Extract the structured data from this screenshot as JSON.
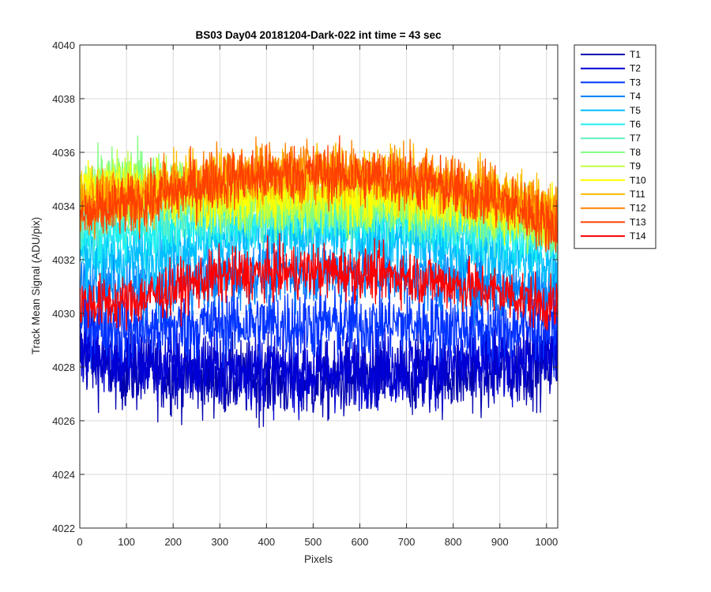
{
  "chart_data": {
    "type": "line",
    "title": "BS03 Day04 20181204-Dark-022 int time = 43 sec",
    "xlabel": "Pixels",
    "ylabel": "Track Mean Signal (ADU/pix)",
    "xlim": [
      0,
      1024
    ],
    "ylim": [
      4022,
      4040
    ],
    "xticks": [
      0,
      100,
      200,
      300,
      400,
      500,
      600,
      700,
      800,
      900,
      1000
    ],
    "yticks": [
      4022,
      4024,
      4026,
      4028,
      4030,
      4032,
      4034,
      4036,
      4038,
      4040
    ],
    "grid": true,
    "legend_position": "outside-top-right",
    "x_points": 1024,
    "series": [
      {
        "name": "T1",
        "color": "#0000AF",
        "profile_x": [
          0,
          100,
          300,
          500,
          700,
          900,
          1024
        ],
        "profile_y": [
          4028.4,
          4027.8,
          4027.6,
          4027.4,
          4027.6,
          4027.8,
          4028.2
        ],
        "spread": 1.3
      },
      {
        "name": "T2",
        "color": "#0000D6",
        "profile_x": [
          0,
          100,
          300,
          500,
          700,
          900,
          1024
        ],
        "profile_y": [
          4028.8,
          4028.2,
          4028.0,
          4027.8,
          4028.0,
          4028.2,
          4028.6
        ],
        "spread": 1.3
      },
      {
        "name": "T3",
        "color": "#0033FF",
        "profile_x": [
          0,
          100,
          300,
          500,
          700,
          900,
          1024
        ],
        "profile_y": [
          4029.8,
          4029.4,
          4029.6,
          4029.6,
          4029.6,
          4029.4,
          4029.6
        ],
        "spread": 1.2
      },
      {
        "name": "T4",
        "color": "#0080FF",
        "profile_x": [
          0,
          100,
          300,
          500,
          700,
          900,
          1024
        ],
        "profile_y": [
          4031.0,
          4030.8,
          4031.4,
          4031.6,
          4031.4,
          4031.0,
          4030.8
        ],
        "spread": 1.1
      },
      {
        "name": "T5",
        "color": "#00BFFF",
        "profile_x": [
          0,
          100,
          300,
          500,
          700,
          900,
          1024
        ],
        "profile_y": [
          4032.2,
          4032.0,
          4032.8,
          4033.0,
          4032.8,
          4032.2,
          4031.8
        ],
        "spread": 1.1
      },
      {
        "name": "T6",
        "color": "#1EEFF0",
        "profile_x": [
          0,
          100,
          300,
          500,
          700,
          900,
          1024
        ],
        "profile_y": [
          4033.0,
          4033.0,
          4033.4,
          4033.6,
          4033.4,
          4033.0,
          4032.6
        ],
        "spread": 1.0
      },
      {
        "name": "T7",
        "color": "#60F0C0",
        "profile_x": [
          0,
          100,
          300,
          500,
          700,
          900,
          1024
        ],
        "profile_y": [
          4033.6,
          4033.8,
          4033.8,
          4033.8,
          4033.8,
          4033.4,
          4033.0
        ],
        "spread": 1.0
      },
      {
        "name": "T8",
        "color": "#7FFF7F",
        "profile_x": [
          0,
          100,
          300,
          500,
          700,
          900,
          1024
        ],
        "profile_y": [
          4034.6,
          4035.2,
          4034.2,
          4034.0,
          4034.0,
          4033.8,
          4033.4
        ],
        "spread": 1.0
      },
      {
        "name": "T9",
        "color": "#BFFF40",
        "profile_x": [
          0,
          100,
          300,
          500,
          700,
          900,
          1024
        ],
        "profile_y": [
          4034.6,
          4034.8,
          4034.2,
          4034.2,
          4034.2,
          4033.8,
          4033.4
        ],
        "spread": 1.0
      },
      {
        "name": "T10",
        "color": "#FFFF00",
        "profile_x": [
          0,
          100,
          300,
          500,
          700,
          900,
          1024
        ],
        "profile_y": [
          4034.8,
          4034.6,
          4034.4,
          4034.4,
          4034.4,
          4034.0,
          4033.6
        ],
        "spread": 1.0
      },
      {
        "name": "T11",
        "color": "#FFBF00",
        "profile_x": [
          0,
          100,
          300,
          500,
          700,
          900,
          1024
        ],
        "profile_y": [
          4034.4,
          4034.4,
          4035.0,
          4035.2,
          4035.0,
          4034.4,
          4033.8
        ],
        "spread": 1.0
      },
      {
        "name": "T12",
        "color": "#FF8000",
        "profile_x": [
          0,
          100,
          300,
          500,
          700,
          900,
          1024
        ],
        "profile_y": [
          4034.0,
          4034.2,
          4035.2,
          4035.4,
          4035.2,
          4034.4,
          4033.6
        ],
        "spread": 1.0
      },
      {
        "name": "T13",
        "color": "#FF4000",
        "profile_x": [
          0,
          100,
          300,
          500,
          700,
          900,
          1024
        ],
        "profile_y": [
          4033.6,
          4034.0,
          4035.0,
          4035.2,
          4035.0,
          4034.2,
          4033.2
        ],
        "spread": 1.0
      },
      {
        "name": "T14",
        "color": "#FF0000",
        "profile_x": [
          0,
          100,
          300,
          500,
          700,
          900,
          1024
        ],
        "profile_y": [
          4030.4,
          4030.4,
          4031.4,
          4031.6,
          4031.4,
          4030.8,
          4030.2
        ],
        "spread": 0.9
      }
    ]
  }
}
